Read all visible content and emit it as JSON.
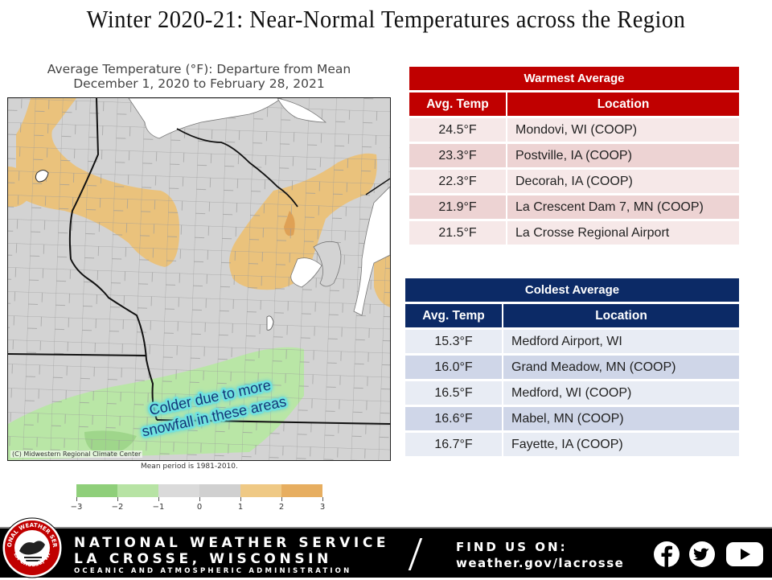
{
  "slide": {
    "title": "Winter 2020-21:  Near-Normal Temperatures across the Region"
  },
  "map": {
    "title_line1": "Average Temperature (°F): Departure from Mean",
    "title_line2": "December 1, 2020 to February 28, 2021",
    "annotation_line1": "Colder due to more",
    "annotation_line2": "snowfall in these areas",
    "credit": "(C) Midwestern Regional Climate Center",
    "mean_period": "Mean period is 1981-2010.",
    "legend": {
      "labels": [
        "-3",
        "-2",
        "-1",
        "0",
        "1",
        "2",
        "3"
      ],
      "colors": [
        "#8fcf7a",
        "#b7e3a4",
        "#dadada",
        "#d0d0d0",
        "#efc985",
        "#e7ae60"
      ]
    },
    "colors": {
      "near_normal": "#d3d3d3",
      "warm": "#eac27c",
      "warm_strong": "#dfa155",
      "cool": "#b9e6a6",
      "cool_strong": "#9fd68b",
      "water": "#ffffff",
      "county_lines": "#9a9a9a",
      "state_lines": "#111111"
    }
  },
  "warmest": {
    "title": "Warmest Average",
    "col_temp": "Avg. Temp",
    "col_location": "Location",
    "rows": [
      {
        "temp": "24.5°F",
        "location": "Mondovi, WI (COOP)"
      },
      {
        "temp": "23.3°F",
        "location": "Postville, IA (COOP)"
      },
      {
        "temp": "22.3°F",
        "location": "Decorah, IA (COOP)"
      },
      {
        "temp": "21.9°F",
        "location": "La Crescent Dam 7, MN (COOP)"
      },
      {
        "temp": "21.5°F",
        "location": "La Crosse Regional Airport"
      }
    ]
  },
  "coldest": {
    "title": "Coldest Average",
    "col_temp": "Avg. Temp",
    "col_location": "Location",
    "rows": [
      {
        "temp": "15.3°F",
        "location": "Medford Airport, WI"
      },
      {
        "temp": "16.0°F",
        "location": "Grand Meadow, MN (COOP)"
      },
      {
        "temp": "16.5°F",
        "location": "Medford, WI (COOP)"
      },
      {
        "temp": "16.6°F",
        "location": "Mabel, MN (COOP)"
      },
      {
        "temp": "16.7°F",
        "location": "Fayette, IA (COOP)"
      }
    ]
  },
  "footer": {
    "agency": "NATIONAL WEATHER SERVICE",
    "office": "LA CROSSE, WISCONSIN",
    "sub": "OCEANIC AND ATMOSPHERIC ADMINISTRATION",
    "find_us": "FIND US ON:",
    "website": "weather.gov/lacrosse",
    "logo_top_text": "NATIONAL WEATHER SERVICE",
    "logo_bottom_text": "LA CROSSE, WI",
    "social_icons": [
      "facebook-icon",
      "twitter-icon",
      "youtube-icon"
    ]
  }
}
